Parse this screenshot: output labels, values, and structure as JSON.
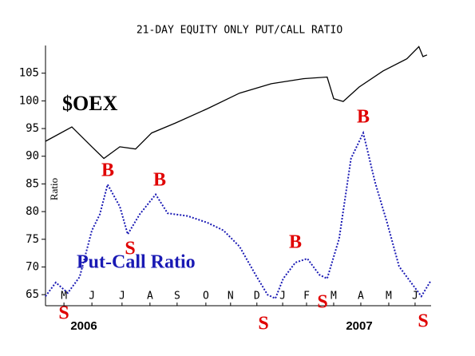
{
  "chart_data": {
    "type": "line",
    "title": "21-DAY EQUITY ONLY PUT/CALL RATIO",
    "y_label": "Ratio",
    "xlim": [
      0,
      14.21
    ],
    "xticks": [
      {
        "value": 0.68,
        "label": "M"
      },
      {
        "value": 1.71,
        "label": "J"
      },
      {
        "value": 2.82,
        "label": "J"
      },
      {
        "value": 3.85,
        "label": "A"
      },
      {
        "value": 4.85,
        "label": "S"
      },
      {
        "value": 5.91,
        "label": "O"
      },
      {
        "value": 6.82,
        "label": "N"
      },
      {
        "value": 7.79,
        "label": "D"
      },
      {
        "value": 8.74,
        "label": "J"
      },
      {
        "value": 9.62,
        "label": "F"
      },
      {
        "value": 10.62,
        "label": "M"
      },
      {
        "value": 11.62,
        "label": "A"
      },
      {
        "value": 12.65,
        "label": "M"
      },
      {
        "value": 13.62,
        "label": "J"
      }
    ],
    "years": [
      "2006",
      "2007"
    ],
    "ylim": [
      63,
      110
    ],
    "yticks": [
      65,
      70,
      75,
      80,
      85,
      90,
      95,
      100,
      105
    ],
    "series": [
      {
        "name": "$OEX",
        "color": "#000000",
        "x": [
          0,
          0.97,
          1.71,
          2.15,
          2.74,
          3.32,
          3.91,
          4.79,
          5.97,
          7.15,
          8.32,
          9.5,
          10.38,
          10.62,
          10.97,
          11.56,
          12.44,
          13.32,
          13.76,
          13.91,
          14.06
        ],
        "values": [
          92.7,
          95.3,
          91.7,
          89.6,
          91.7,
          91.3,
          94.2,
          96,
          98.6,
          101.4,
          103.1,
          104,
          104.3,
          100.4,
          99.9,
          102.5,
          105.4,
          107.6,
          109.8,
          108,
          108.3
        ]
      },
      {
        "name": "Put-Call Ratio",
        "color": "#1a1ab4",
        "x": [
          0,
          0.38,
          0.82,
          1.26,
          1.71,
          2,
          2.29,
          2.74,
          3.03,
          3.47,
          4.06,
          4.5,
          5.24,
          5.97,
          6.56,
          7.15,
          7.74,
          8.18,
          8.47,
          8.76,
          9.21,
          9.65,
          10.09,
          10.38,
          10.82,
          11.26,
          11.71,
          12.15,
          12.59,
          13.03,
          13.47,
          13.85,
          14.21
        ],
        "values": [
          64.7,
          67.2,
          65.3,
          68.2,
          76.6,
          79.5,
          84.9,
          80.9,
          75.9,
          79.5,
          83.1,
          79.7,
          79.2,
          78,
          76.6,
          73.7,
          68.6,
          65,
          64.3,
          67.9,
          70.8,
          71.5,
          68.6,
          67.9,
          75.1,
          89.6,
          94.2,
          85.2,
          78,
          70.1,
          67.2,
          64.7,
          67.6
        ]
      }
    ],
    "annotations": [
      "B",
      "B",
      "B",
      "B",
      "S",
      "S",
      "S",
      "S",
      "S"
    ]
  }
}
